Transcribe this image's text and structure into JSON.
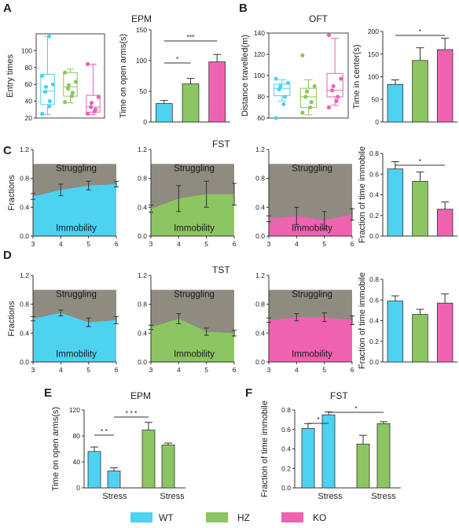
{
  "colors": {
    "WT": "#4dd2f0",
    "HZ": "#8cc562",
    "KO": "#ef62b1",
    "struggle": "#8f8b80",
    "axis": "#333333"
  },
  "panels": [
    {
      "key": "A",
      "title": "EPM"
    },
    {
      "key": "B",
      "title": "OFT"
    },
    {
      "key": "C",
      "title": "FST"
    },
    {
      "key": "D",
      "title": "TST"
    },
    {
      "key": "E",
      "title": "EPM"
    },
    {
      "key": "F",
      "title": "FST"
    }
  ],
  "legend": [
    {
      "label": "WT",
      "color": "#4dd2f0"
    },
    {
      "label": "HZ",
      "color": "#8cc562"
    },
    {
      "label": "KO",
      "color": "#ef62b1"
    }
  ],
  "chart_data": [
    {
      "id": "A-box",
      "panel": "A",
      "type": "box",
      "ylabel": "Entry times",
      "ylim": [
        20,
        120
      ],
      "yticks": [
        20,
        40,
        60,
        80,
        100
      ],
      "groups": [
        {
          "name": "WT",
          "min": 24,
          "q1": 36,
          "median": 52,
          "q3": 72,
          "max": 117,
          "points": [
            25,
            34,
            40,
            51,
            57,
            60,
            70,
            117
          ]
        },
        {
          "name": "HZ",
          "min": 38,
          "q1": 46,
          "median": 57,
          "q3": 74,
          "max": 78,
          "points": [
            39,
            46,
            50,
            55,
            59,
            63,
            74
          ]
        },
        {
          "name": "KO",
          "min": 24,
          "q1": 27,
          "median": 33,
          "q3": 47,
          "max": 84,
          "points": [
            25,
            28,
            30,
            33,
            38,
            45,
            84
          ]
        }
      ]
    },
    {
      "id": "A-bar",
      "panel": "A",
      "type": "bar",
      "ylabel": "Time on open arms(s)",
      "ylim": [
        0,
        150
      ],
      "yticks": [
        0,
        50,
        100,
        150
      ],
      "categories": [
        "WT",
        "HZ",
        "KO"
      ],
      "values": [
        30,
        62,
        98
      ],
      "errors": [
        5,
        9,
        12
      ],
      "significance": [
        {
          "from": 0,
          "to": 1,
          "label": "*"
        },
        {
          "from": 0,
          "to": 2,
          "label": "***"
        }
      ]
    },
    {
      "id": "B-box",
      "panel": "B",
      "type": "box",
      "ylabel": "Distance travelled(m)",
      "ylim": [
        60,
        140
      ],
      "yticks": [
        60,
        80,
        100,
        120,
        140
      ],
      "groups": [
        {
          "name": "WT",
          "min": 76,
          "q1": 81,
          "median": 88,
          "q3": 92,
          "max": 96,
          "points": [
            60,
            73,
            80,
            87,
            90,
            93,
            97
          ]
        },
        {
          "name": "HZ",
          "min": 63,
          "q1": 70,
          "median": 80,
          "q3": 88,
          "max": 96,
          "points": [
            65,
            70,
            75,
            80,
            85,
            90,
            119
          ]
        },
        {
          "name": "KO",
          "min": 72,
          "q1": 80,
          "median": 86,
          "q3": 102,
          "max": 135,
          "points": [
            70,
            76,
            80,
            86,
            90,
            97,
            138
          ]
        }
      ]
    },
    {
      "id": "B-bar",
      "panel": "B",
      "type": "bar",
      "ylabel": "Time in center(s)",
      "ylim": [
        0,
        200
      ],
      "yticks": [
        0,
        50,
        100,
        150,
        200
      ],
      "categories": [
        "WT",
        "HZ",
        "KO"
      ],
      "values": [
        83,
        136,
        160
      ],
      "errors": [
        10,
        28,
        25
      ],
      "significance": [
        {
          "from": 0,
          "to": 2,
          "label": "*"
        }
      ]
    },
    {
      "id": "C-area",
      "panel": "C",
      "type": "area",
      "ylabel": "Fractions",
      "xticks": [
        3,
        4,
        5,
        6
      ],
      "ylim": [
        0,
        1.2
      ],
      "yticks": [
        0.0,
        0.4,
        0.8,
        1.2
      ],
      "area_labels": [
        "Struggling",
        "Immobility"
      ],
      "groups": [
        {
          "name": "WT",
          "x": [
            3,
            4,
            5,
            6
          ],
          "immobility": [
            0.55,
            0.64,
            0.7,
            0.72
          ],
          "errors": [
            0.04,
            0.08,
            0.06,
            0.04
          ]
        },
        {
          "name": "HZ",
          "x": [
            3,
            4,
            5,
            6
          ],
          "immobility": [
            0.38,
            0.52,
            0.58,
            0.58
          ],
          "errors": [
            0.05,
            0.18,
            0.18,
            0.15
          ]
        },
        {
          "name": "KO",
          "x": [
            3,
            4,
            5,
            6
          ],
          "immobility": [
            0.24,
            0.28,
            0.22,
            0.3
          ],
          "errors": [
            0.04,
            0.12,
            0.12,
            0.08
          ]
        }
      ]
    },
    {
      "id": "C-bar",
      "panel": "C",
      "type": "bar",
      "ylabel": "Fraction of time immobile",
      "ylim": [
        0,
        0.8
      ],
      "yticks": [
        0.0,
        0.2,
        0.4,
        0.6,
        0.8
      ],
      "categories": [
        "WT",
        "HZ",
        "KO"
      ],
      "values": [
        0.65,
        0.53,
        0.26
      ],
      "errors": [
        0.07,
        0.09,
        0.07
      ],
      "significance": [
        {
          "from": 0,
          "to": 2,
          "label": "*"
        }
      ]
    },
    {
      "id": "D-area",
      "panel": "D",
      "type": "area",
      "ylabel": "Fractions",
      "xticks": [
        3,
        4,
        5,
        6
      ],
      "ylim": [
        0,
        1.2
      ],
      "yticks": [
        0.0,
        0.4,
        0.8,
        1.2
      ],
      "area_labels": [
        "Struggling",
        "Immobility"
      ],
      "groups": [
        {
          "name": "WT",
          "x": [
            3,
            4,
            5,
            6
          ],
          "immobility": [
            0.6,
            0.68,
            0.55,
            0.58
          ],
          "errors": [
            0.03,
            0.04,
            0.06,
            0.05
          ]
        },
        {
          "name": "HZ",
          "x": [
            3,
            4,
            5,
            6
          ],
          "immobility": [
            0.48,
            0.6,
            0.42,
            0.4
          ],
          "errors": [
            0.03,
            0.07,
            0.05,
            0.04
          ]
        },
        {
          "name": "KO",
          "x": [
            3,
            4,
            5,
            6
          ],
          "immobility": [
            0.58,
            0.62,
            0.62,
            0.58
          ],
          "errors": [
            0.03,
            0.05,
            0.06,
            0.06
          ]
        }
      ]
    },
    {
      "id": "D-bar",
      "panel": "D",
      "type": "bar",
      "ylabel": "Fraction of time immobile",
      "ylim": [
        0,
        0.8
      ],
      "yticks": [
        0.0,
        0.2,
        0.4,
        0.6,
        0.8
      ],
      "categories": [
        "WT",
        "HZ",
        "KO"
      ],
      "values": [
        0.59,
        0.46,
        0.57
      ],
      "errors": [
        0.05,
        0.05,
        0.09
      ]
    },
    {
      "id": "E-bar",
      "panel": "E",
      "type": "grouped-bar",
      "ylabel": "Time on open arms(s)",
      "ylim": [
        0,
        120
      ],
      "yticks": [
        0,
        40,
        80,
        120
      ],
      "group_labels": [
        "Stress",
        "Stress"
      ],
      "bars": [
        {
          "series": "WT",
          "value": 56,
          "error": 7
        },
        {
          "series": "WT",
          "value": 26,
          "error": 5
        },
        {
          "series": "HZ",
          "value": 89,
          "error": 12
        },
        {
          "series": "HZ",
          "value": 66,
          "error": 3
        }
      ],
      "significance": [
        {
          "from": 0,
          "to": 1,
          "label": "* *"
        },
        {
          "from": 1,
          "to": 2,
          "label": "* * *"
        }
      ]
    },
    {
      "id": "F-bar",
      "panel": "F",
      "type": "grouped-bar",
      "ylabel": "Fraction of time immobile",
      "ylim": [
        0,
        0.8
      ],
      "yticks": [
        0.0,
        0.2,
        0.4,
        0.6,
        0.8
      ],
      "group_labels": [
        "Stress",
        "Stress"
      ],
      "bars": [
        {
          "series": "WT",
          "value": 0.61,
          "error": 0.05
        },
        {
          "series": "WT",
          "value": 0.75,
          "error": 0.03
        },
        {
          "series": "HZ",
          "value": 0.45,
          "error": 0.09
        },
        {
          "series": "HZ",
          "value": 0.66,
          "error": 0.02
        }
      ],
      "significance": [
        {
          "from": 0,
          "to": 1,
          "label": "*"
        },
        {
          "from": 1,
          "to": 3,
          "label": "*"
        }
      ]
    }
  ]
}
